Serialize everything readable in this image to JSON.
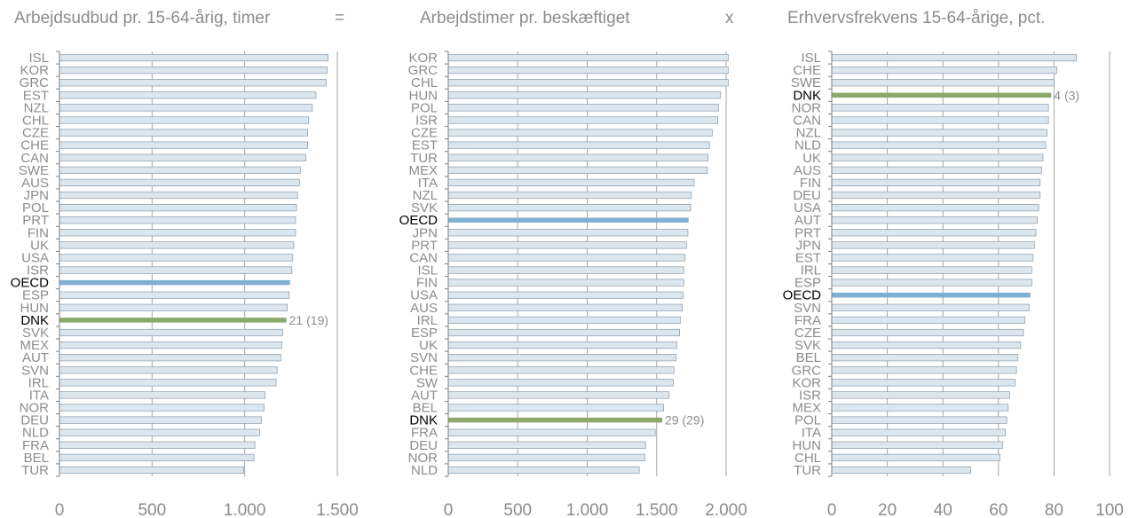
{
  "colors": {
    "bar": "#dce6ef",
    "bar_stroke": "#8a9aa8",
    "oecd": "#7fb0d4",
    "dnk": "#8ca86a",
    "grid": "#a6a6a6",
    "axis": "#7f7f7f",
    "label": "#8c8c8c",
    "label_highlight": "#000000"
  },
  "operators": [
    "=",
    "x"
  ],
  "chart_data": [
    {
      "type": "bar",
      "orientation": "horizontal",
      "title": "Arbejdsudbud pr. 15-64-årig, timer",
      "categories": [
        "ISL",
        "KOR",
        "GRC",
        "EST",
        "NZL",
        "CHL",
        "CZE",
        "CHE",
        "CAN",
        "SWE",
        "AUS",
        "JPN",
        "POL",
        "PRT",
        "FIN",
        "UK",
        "USA",
        "ISR",
        "OECD",
        "ESP",
        "HUN",
        "DNK",
        "SVK",
        "MEX",
        "AUT",
        "SVN",
        "IRL",
        "ITA",
        "NOR",
        "DEU",
        "NLD",
        "FRA",
        "BEL",
        "TUR"
      ],
      "values": [
        1450,
        1445,
        1440,
        1385,
        1365,
        1345,
        1340,
        1340,
        1330,
        1300,
        1295,
        1285,
        1280,
        1275,
        1275,
        1265,
        1260,
        1255,
        1245,
        1240,
        1230,
        1225,
        1205,
        1200,
        1195,
        1175,
        1170,
        1110,
        1105,
        1090,
        1080,
        1055,
        1050,
        995
      ],
      "xlim": [
        0,
        1500
      ],
      "xticks": [
        "0",
        "500",
        "1.000",
        "1.500"
      ],
      "grid": true,
      "highlight": {
        "OECD": "oecd",
        "DNK": "dnk"
      },
      "annotation": {
        "category": "DNK",
        "text": "21 (19)"
      }
    },
    {
      "type": "bar",
      "orientation": "horizontal",
      "title": "Arbejdstimer pr. beskæftiget",
      "categories": [
        "KOR",
        "GRC",
        "CHL",
        "HUN",
        "POL",
        "ISR",
        "CZE",
        "EST",
        "TUR",
        "MEX",
        "ITA",
        "NZL",
        "SVK",
        "OECD",
        "JPN",
        "PRT",
        "CAN",
        "ISL",
        "FIN",
        "USA",
        "AUS",
        "IRL",
        "ESP",
        "UK",
        "SVN",
        "CHE",
        "SW",
        "AUT",
        "BEL",
        "DNK",
        "FRA",
        "DEU",
        "NOR",
        "NLD"
      ],
      "values": [
        2015,
        2015,
        2015,
        1960,
        1945,
        1940,
        1900,
        1880,
        1870,
        1865,
        1770,
        1750,
        1745,
        1730,
        1725,
        1715,
        1705,
        1695,
        1695,
        1690,
        1685,
        1670,
        1665,
        1645,
        1640,
        1625,
        1620,
        1590,
        1550,
        1540,
        1490,
        1420,
        1415,
        1375
      ],
      "xlim": [
        0,
        2000
      ],
      "xticks": [
        "0",
        "500",
        "1.000",
        "1.500",
        "2.000"
      ],
      "grid": true,
      "highlight": {
        "OECD": "oecd",
        "DNK": "dnk"
      },
      "annotation": {
        "category": "DNK",
        "text": "29 (29)"
      }
    },
    {
      "type": "bar",
      "orientation": "horizontal",
      "title": "Erhvervsfrekvens 15-64-årige, pct.",
      "categories": [
        "ISL",
        "CHE",
        "SWE",
        "DNK",
        "NOR",
        "CAN",
        "NZL",
        "NLD",
        "UK",
        "AUS",
        "FIN",
        "DEU",
        "USA",
        "AUT",
        "PRT",
        "JPN",
        "EST",
        "IRL",
        "ESP",
        "OECD",
        "SVN",
        "FRA",
        "CZE",
        "SVK",
        "BEL",
        "GRC",
        "KOR",
        "ISR",
        "MEX",
        "POL",
        "ITA",
        "HUN",
        "CHL",
        "TUR"
      ],
      "values": [
        88,
        81,
        80,
        79,
        78,
        78,
        77.5,
        77,
        76,
        75.5,
        75,
        75,
        74.5,
        74,
        73.5,
        73,
        72.5,
        72,
        72,
        71.5,
        71,
        69.5,
        69,
        68,
        67,
        66.5,
        66,
        64,
        63.5,
        63,
        62.5,
        61.5,
        60.5,
        50
      ],
      "xlim": [
        0,
        100
      ],
      "xticks": [
        "0",
        "20",
        "40",
        "60",
        "80",
        "100"
      ],
      "grid": true,
      "highlight": {
        "OECD": "oecd",
        "DNK": "dnk"
      },
      "annotation": {
        "category": "DNK",
        "text": "4 (3)"
      }
    }
  ]
}
